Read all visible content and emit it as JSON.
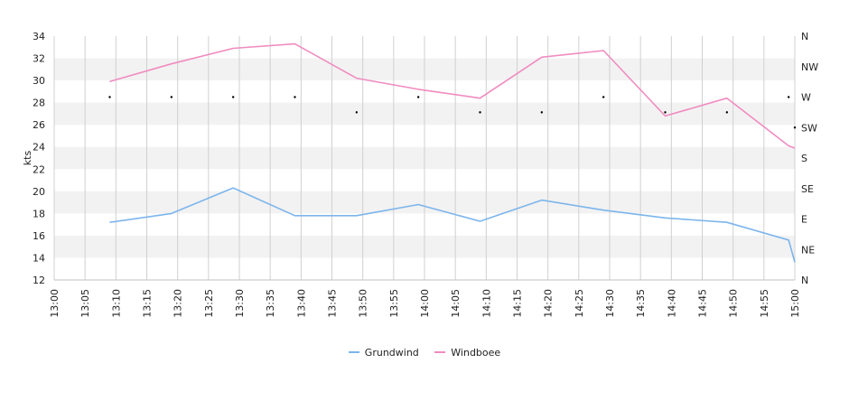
{
  "chart_data": {
    "type": "line",
    "ylabel": "kts",
    "ylim": [
      12,
      34
    ],
    "y_ticks": [
      "12",
      "14",
      "16",
      "18",
      "20",
      "22",
      "24",
      "26",
      "28",
      "30",
      "32",
      "34"
    ],
    "x_ticks": [
      "13:00",
      "13:05",
      "13:10",
      "13:15",
      "13:20",
      "13:25",
      "13:30",
      "13:35",
      "13:40",
      "13:45",
      "13:50",
      "13:55",
      "14:00",
      "14:05",
      "14:10",
      "14:15",
      "14:20",
      "14:25",
      "14:30",
      "14:35",
      "14:40",
      "14:45",
      "14:50",
      "14:55",
      "15:00"
    ],
    "direction_ticks": [
      "N",
      "NW",
      "W",
      "SW",
      "S",
      "SE",
      "E",
      "NE",
      "N"
    ],
    "grid": true,
    "legend_position": "bottom",
    "series": [
      {
        "name": "Grundwind",
        "color": "#7cb5ec",
        "points": [
          [
            "13:09",
            17.2
          ],
          [
            "13:19",
            18.0
          ],
          [
            "13:29",
            20.3
          ],
          [
            "13:39",
            17.8
          ],
          [
            "13:49",
            17.8
          ],
          [
            "13:59",
            18.8
          ],
          [
            "14:09",
            17.3
          ],
          [
            "14:19",
            19.2
          ],
          [
            "14:29",
            18.3
          ],
          [
            "14:39",
            17.6
          ],
          [
            "14:49",
            17.2
          ],
          [
            "14:59",
            15.6
          ],
          [
            "15:00",
            13.6
          ]
        ]
      },
      {
        "name": "Windboee",
        "color": "#f08cc0",
        "points": [
          [
            "13:09",
            29.9
          ],
          [
            "13:19",
            31.5
          ],
          [
            "13:29",
            32.9
          ],
          [
            "13:39",
            33.3
          ],
          [
            "13:49",
            30.2
          ],
          [
            "13:59",
            29.2
          ],
          [
            "14:09",
            28.4
          ],
          [
            "14:19",
            32.1
          ],
          [
            "14:29",
            32.7
          ],
          [
            "14:39",
            26.8
          ],
          [
            "14:49",
            28.4
          ],
          [
            "14:59",
            24.1
          ],
          [
            "15:00",
            23.9
          ]
        ]
      }
    ],
    "direction_points": [
      [
        "13:09",
        "W"
      ],
      [
        "13:19",
        "W"
      ],
      [
        "13:29",
        "W"
      ],
      [
        "13:39",
        "W"
      ],
      [
        "13:49",
        "WSW"
      ],
      [
        "13:59",
        "W"
      ],
      [
        "14:09",
        "WSW"
      ],
      [
        "14:19",
        "WSW"
      ],
      [
        "14:29",
        "W"
      ],
      [
        "14:39",
        "WSW"
      ],
      [
        "14:49",
        "WSW"
      ],
      [
        "14:59",
        "W"
      ],
      [
        "15:00",
        "SW"
      ]
    ]
  }
}
